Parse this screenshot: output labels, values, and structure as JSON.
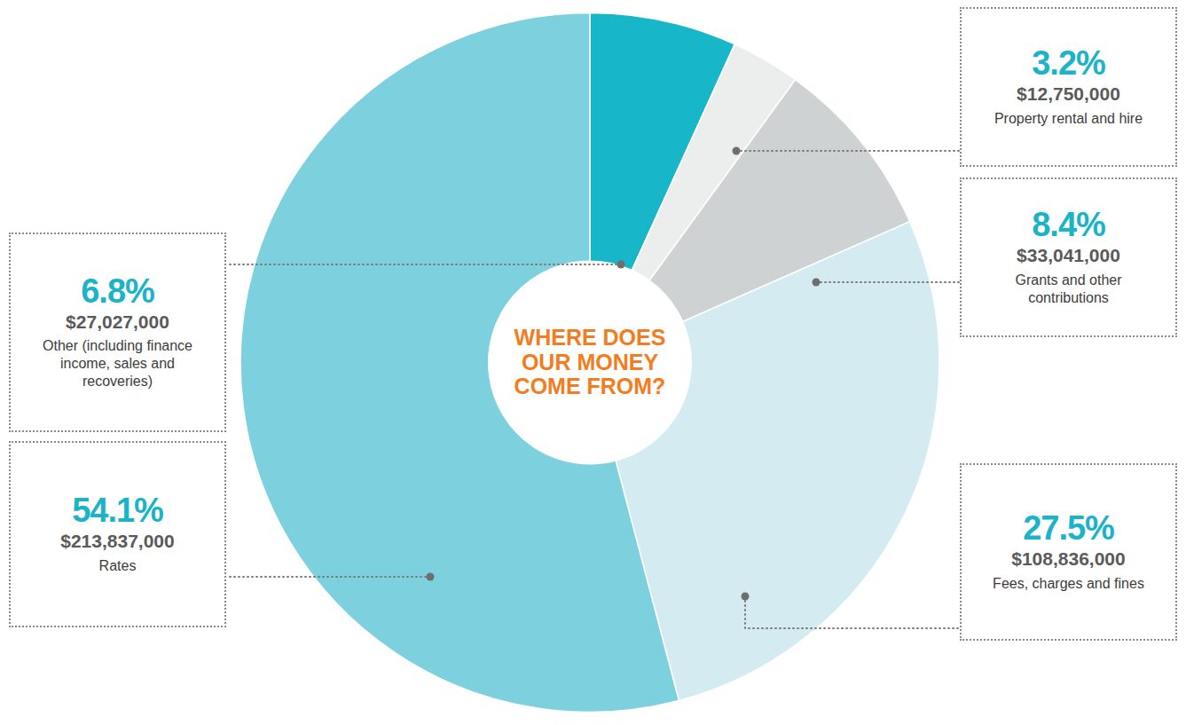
{
  "chart_data": {
    "type": "pie",
    "title": "WHERE DOES OUR MONEY COME FROM?",
    "categories": [
      "Other (including finance income, sales and recoveries)",
      "Property rental and hire",
      "Grants and other contributions",
      "Fees, charges and fines",
      "Rates"
    ],
    "values": [
      6.8,
      3.2,
      8.4,
      27.5,
      54.1
    ],
    "value_labels": [
      "6.8%",
      "3.2%",
      "8.4%",
      "27.5%",
      "54.1%"
    ],
    "amounts": [
      "$27,027,000",
      "$12,750,000",
      "$33,041,000",
      "$108,836,000",
      "$213,837,000"
    ],
    "colors": [
      "#17b6c9",
      "#eceeee",
      "#cfd2d2",
      "#d4ecf1",
      "#7dd0dd"
    ],
    "data_labels": true
  }
}
